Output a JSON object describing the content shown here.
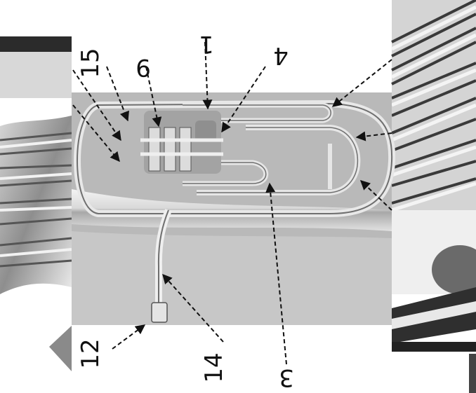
{
  "colors": {
    "photo_bg": "#b9b9b9",
    "tube_light": "#e6e6e6",
    "tube_dark": "#6f6f6f",
    "arrow": "#111111",
    "frame_dark": "#2b2b2b"
  },
  "callouts": [
    {
      "id": "1",
      "label": "1"
    },
    {
      "id": "9",
      "label": "9"
    },
    {
      "id": "15",
      "label": "15"
    },
    {
      "id": "4",
      "label": "4"
    },
    {
      "id": "12",
      "label": "12"
    },
    {
      "id": "14",
      "label": "14"
    },
    {
      "id": "3",
      "label": "3"
    }
  ]
}
